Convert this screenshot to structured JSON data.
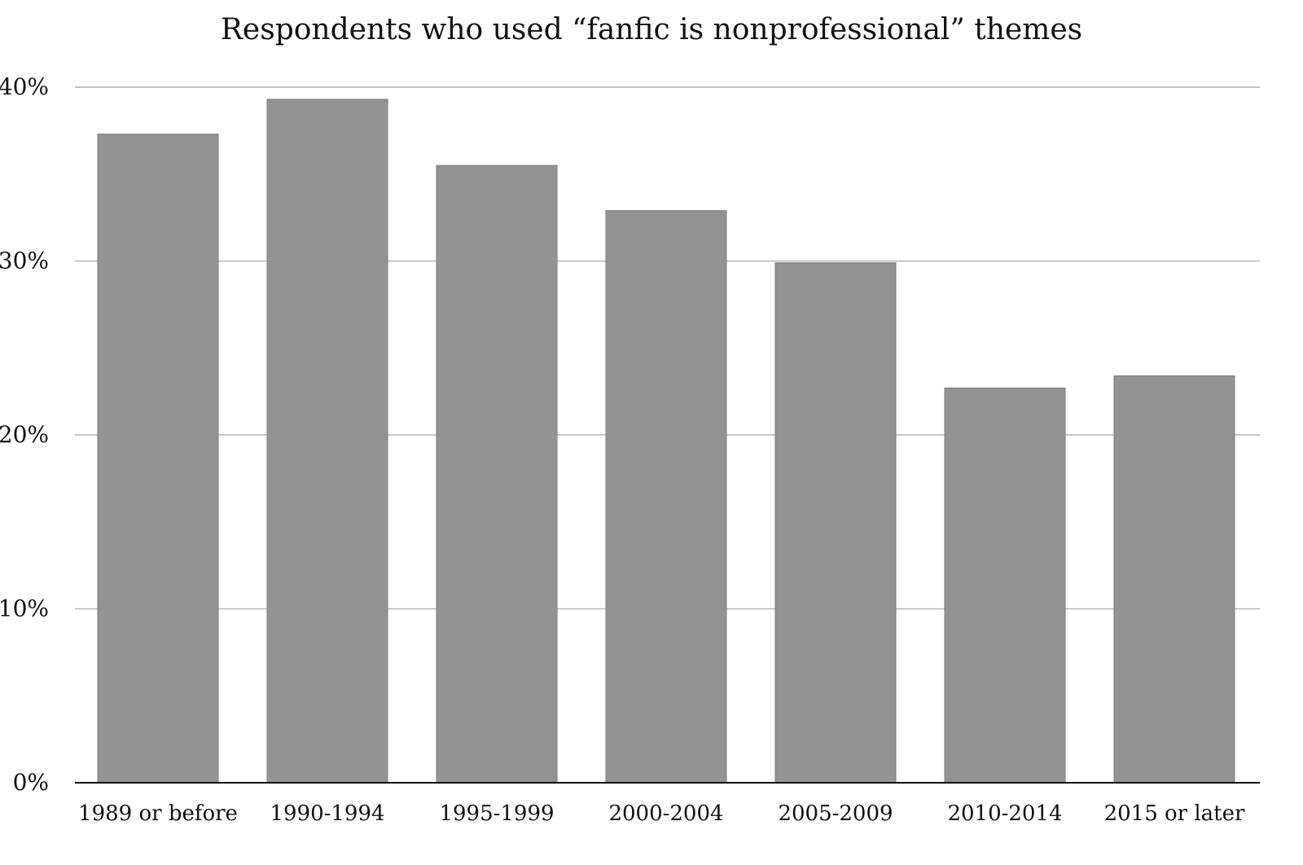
{
  "chart_data": {
    "type": "bar",
    "title": "Respondents who used “fanfic is nonprofessional” themes",
    "xlabel": "",
    "ylabel": "",
    "categories": [
      "1989 or before",
      "1990-1994",
      "1995-1999",
      "2000-2004",
      "2005-2009",
      "2010-2014",
      "2015 or later"
    ],
    "values": [
      37.3,
      39.3,
      35.5,
      32.9,
      29.9,
      22.7,
      23.4
    ],
    "ylim": [
      0,
      40
    ],
    "yticks": [
      0,
      10,
      20,
      30,
      40
    ],
    "ytick_labels": [
      "0%",
      "10%",
      "20%",
      "30%",
      "40%"
    ],
    "grid": true,
    "legend": "none",
    "colors": {
      "bar": "#939393",
      "grid": "#b4b4b4",
      "axis": "#111111",
      "text": "#111111"
    }
  }
}
